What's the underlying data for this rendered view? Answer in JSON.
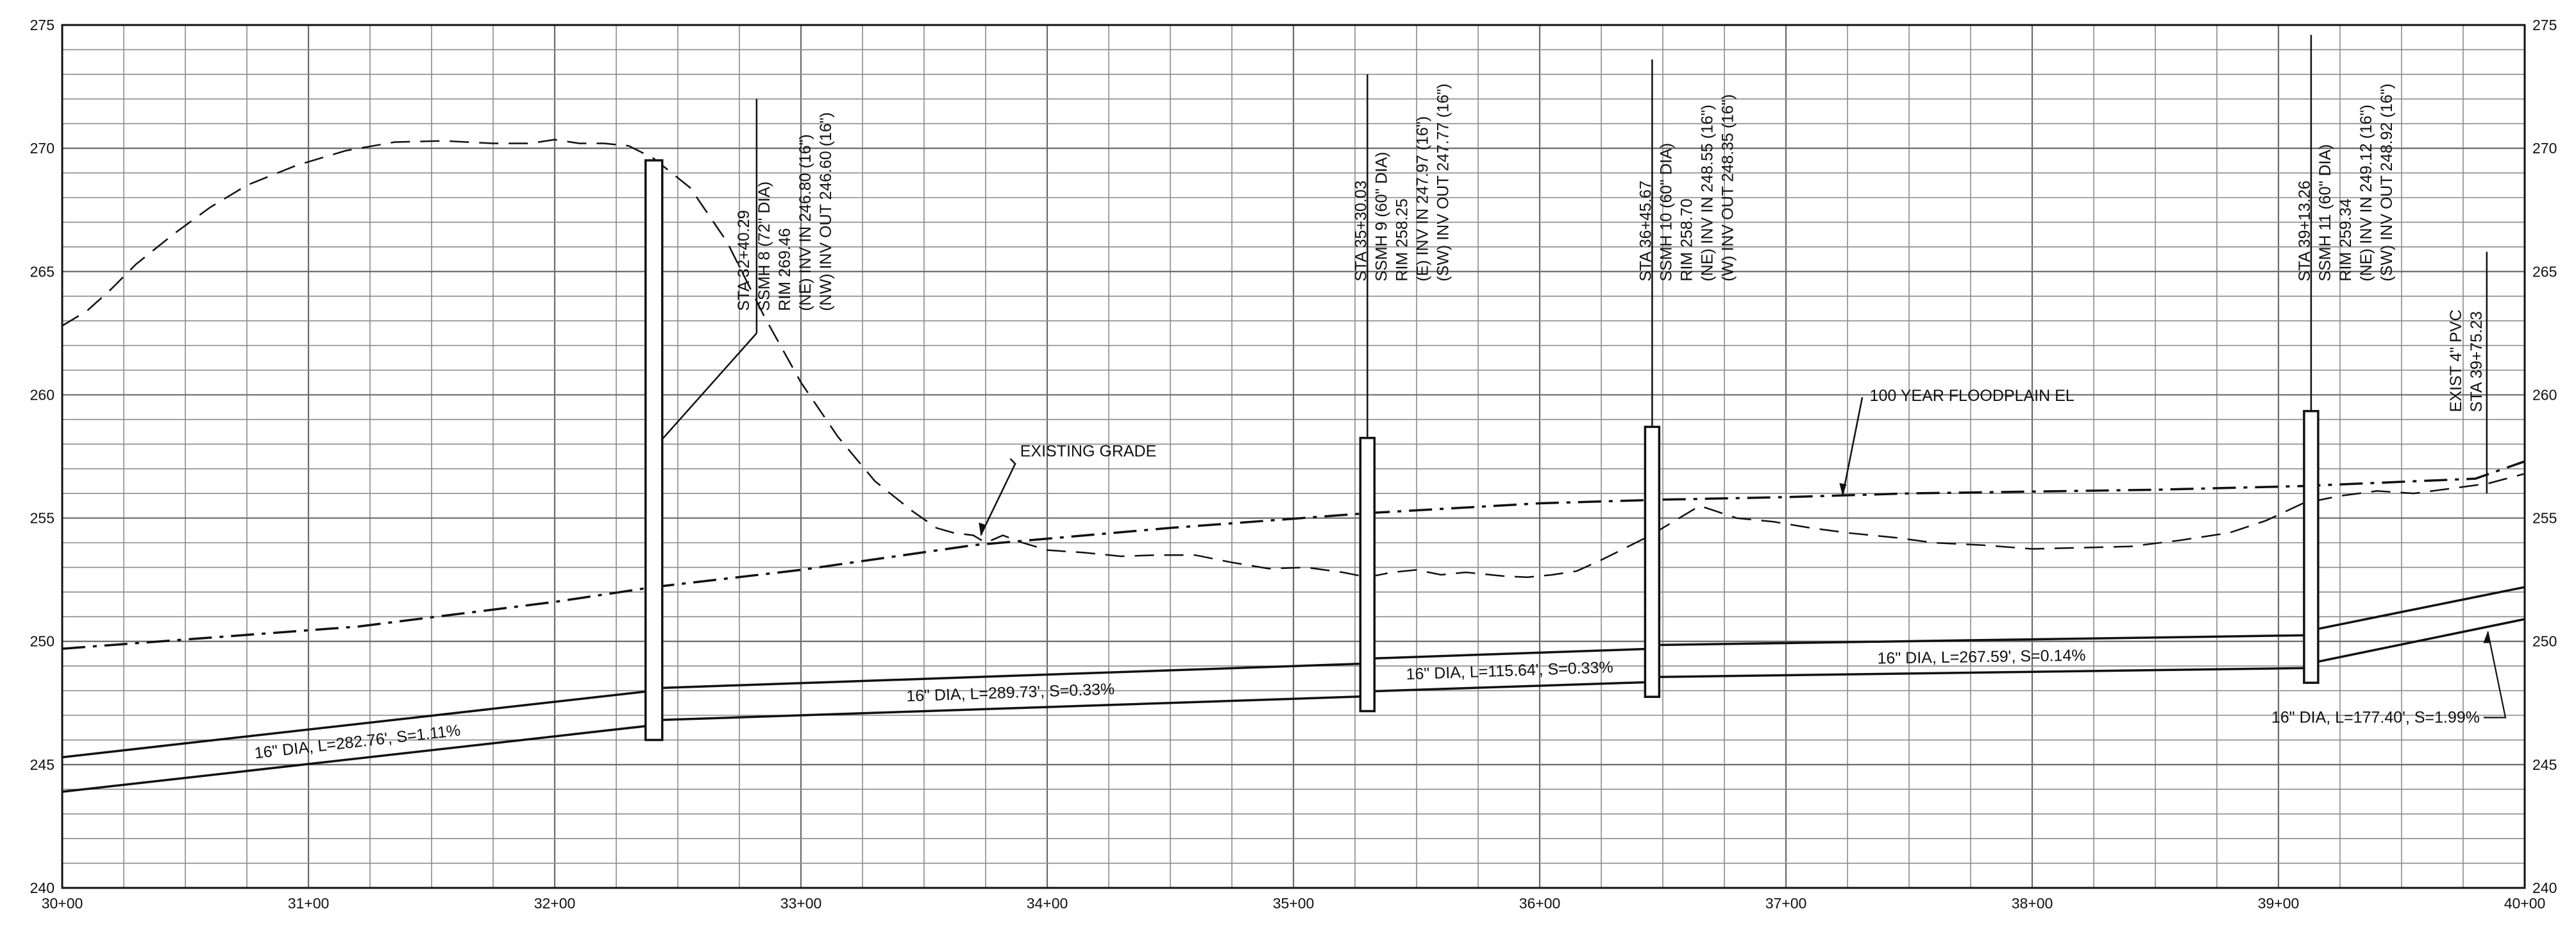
{
  "drawing": {
    "x_axis": {
      "min": 30,
      "max": 40,
      "ticks": [
        "30+00",
        "31+00",
        "32+00",
        "33+00",
        "34+00",
        "35+00",
        "36+00",
        "37+00",
        "38+00",
        "39+00",
        "40+00"
      ]
    },
    "y_axis": {
      "min": 240,
      "max": 275,
      "ticks": [
        "240",
        "245",
        "250",
        "255",
        "260",
        "265",
        "270",
        "275"
      ]
    },
    "callouts": {
      "existing_grade": "EXISTING GRADE",
      "floodplain": "100 YEAR FLOODPLAIN EL"
    },
    "manholes": [
      {
        "station": 32.4029,
        "rim": 269.46,
        "inv_low": 246.6,
        "lines": [
          "STA 32+40.29",
          "SSMH 8 (72\" DIA)",
          "RIM 269.46",
          "(NE) INV IN 246.80 (16\")",
          "(NW) INV OUT 246.60 (16\")"
        ]
      },
      {
        "station": 35.3003,
        "rim": 258.25,
        "inv_low": 247.77,
        "lines": [
          "STA 35+30.03",
          "SSMH 9 (60\" DIA)",
          "RIM 258.25",
          "(E) INV IN 247.97 (16\")",
          "(SW) INV OUT 247.77 (16\")"
        ]
      },
      {
        "station": 36.4567,
        "rim": 258.7,
        "inv_low": 248.35,
        "lines": [
          "STA 36+45.67",
          "SSMH 10 (60\" DIA)",
          "RIM 258.70",
          "(NE) INV IN 248.55 (16\")",
          "(W) INV OUT 248.35 (16\")"
        ]
      },
      {
        "station": 39.1326,
        "rim": 259.34,
        "inv_low": 248.92,
        "lines": [
          "STA 39+13.26",
          "SSMH 11 (60\" DIA)",
          "RIM 259.34",
          "(NE) INV IN 249.12 (16\")",
          "(SW) INV OUT 248.92 (16\")"
        ]
      }
    ],
    "existing_pvc": {
      "station": 39.7523,
      "lines": [
        "EXIST 4\" PVC",
        "STA 39+75.23"
      ]
    },
    "pipes": [
      {
        "label": "16\" DIA, L=282.76', S=1.11%",
        "from_sta": 30.0,
        "to_sta": 32.4029,
        "top_start": 245.3,
        "top_end": 248.0,
        "inv_start": 243.9,
        "inv_end": 246.6
      },
      {
        "label": "16\" DIA, L=289.73', S=0.33%",
        "from_sta": 32.4029,
        "to_sta": 35.3003,
        "top_start": 248.1,
        "top_end": 249.1,
        "inv_start": 246.8,
        "inv_end": 247.77
      },
      {
        "label": "16\" DIA, L=115.64', S=0.33%",
        "from_sta": 35.3003,
        "to_sta": 36.4567,
        "top_start": 249.3,
        "top_end": 249.7,
        "inv_start": 247.97,
        "inv_end": 248.35
      },
      {
        "label": "16\" DIA, L=267.59', S=0.14%",
        "from_sta": 36.4567,
        "to_sta": 39.1326,
        "top_start": 249.85,
        "top_end": 250.25,
        "inv_start": 248.55,
        "inv_end": 248.92
      },
      {
        "label": "16\" DIA, L=177.40', S=1.99%",
        "from_sta": 39.1326,
        "to_sta": 40.0,
        "top_start": 250.45,
        "top_end": 252.2,
        "inv_start": 249.12,
        "inv_end": 250.9
      }
    ],
    "floodplain_line": [
      [
        30.0,
        249.7
      ],
      [
        31.2,
        250.6
      ],
      [
        32.0,
        251.6
      ],
      [
        32.4,
        252.2
      ],
      [
        33.0,
        252.9
      ],
      [
        33.7,
        253.9
      ],
      [
        34.5,
        254.6
      ],
      [
        35.3,
        255.2
      ],
      [
        36.0,
        255.6
      ],
      [
        36.5,
        255.75
      ],
      [
        37.0,
        255.85
      ],
      [
        37.5,
        256.0
      ],
      [
        38.5,
        256.15
      ],
      [
        39.1,
        256.3
      ],
      [
        39.8,
        256.6
      ],
      [
        40.0,
        257.3
      ]
    ],
    "existing_grade": [
      [
        30.0,
        262.8
      ],
      [
        30.1,
        263.4
      ],
      [
        30.2,
        264.3
      ],
      [
        30.3,
        265.3
      ],
      [
        30.45,
        266.5
      ],
      [
        30.6,
        267.6
      ],
      [
        30.75,
        268.5
      ],
      [
        30.95,
        269.3
      ],
      [
        31.15,
        269.9
      ],
      [
        31.35,
        270.25
      ],
      [
        31.55,
        270.3
      ],
      [
        31.75,
        270.2
      ],
      [
        31.9,
        270.2
      ],
      [
        32.0,
        270.35
      ],
      [
        32.1,
        270.2
      ],
      [
        32.2,
        270.2
      ],
      [
        32.3,
        270.1
      ],
      [
        32.4,
        269.6
      ],
      [
        32.55,
        268.4
      ],
      [
        32.7,
        266.2
      ],
      [
        32.85,
        263.2
      ],
      [
        33.0,
        260.5
      ],
      [
        33.15,
        258.3
      ],
      [
        33.3,
        256.5
      ],
      [
        33.45,
        255.3
      ],
      [
        33.55,
        254.6
      ],
      [
        33.62,
        254.4
      ],
      [
        33.7,
        254.3
      ],
      [
        33.75,
        254.0
      ],
      [
        33.82,
        254.3
      ],
      [
        33.9,
        254.0
      ],
      [
        34.0,
        253.7
      ],
      [
        34.15,
        253.6
      ],
      [
        34.3,
        253.45
      ],
      [
        34.45,
        253.5
      ],
      [
        34.6,
        253.5
      ],
      [
        34.75,
        253.2
      ],
      [
        34.9,
        252.95
      ],
      [
        35.05,
        253.0
      ],
      [
        35.2,
        252.8
      ],
      [
        35.3,
        252.6
      ],
      [
        35.4,
        252.8
      ],
      [
        35.5,
        252.9
      ],
      [
        35.6,
        252.7
      ],
      [
        35.7,
        252.8
      ],
      [
        35.85,
        252.65
      ],
      [
        35.95,
        252.6
      ],
      [
        36.05,
        252.7
      ],
      [
        36.15,
        252.85
      ],
      [
        36.25,
        253.3
      ],
      [
        36.35,
        253.8
      ],
      [
        36.45,
        254.3
      ],
      [
        36.55,
        254.9
      ],
      [
        36.65,
        255.5
      ],
      [
        36.8,
        255.0
      ],
      [
        36.95,
        254.85
      ],
      [
        37.1,
        254.6
      ],
      [
        37.25,
        254.4
      ],
      [
        37.45,
        254.2
      ],
      [
        37.6,
        254.0
      ],
      [
        37.8,
        253.9
      ],
      [
        38.0,
        253.75
      ],
      [
        38.2,
        253.8
      ],
      [
        38.4,
        253.85
      ],
      [
        38.6,
        254.1
      ],
      [
        38.8,
        254.4
      ],
      [
        38.95,
        254.9
      ],
      [
        39.1,
        255.6
      ],
      [
        39.25,
        255.9
      ],
      [
        39.4,
        256.1
      ],
      [
        39.55,
        256.0
      ],
      [
        39.7,
        256.2
      ],
      [
        39.85,
        256.4
      ],
      [
        40.0,
        256.8
      ]
    ]
  }
}
